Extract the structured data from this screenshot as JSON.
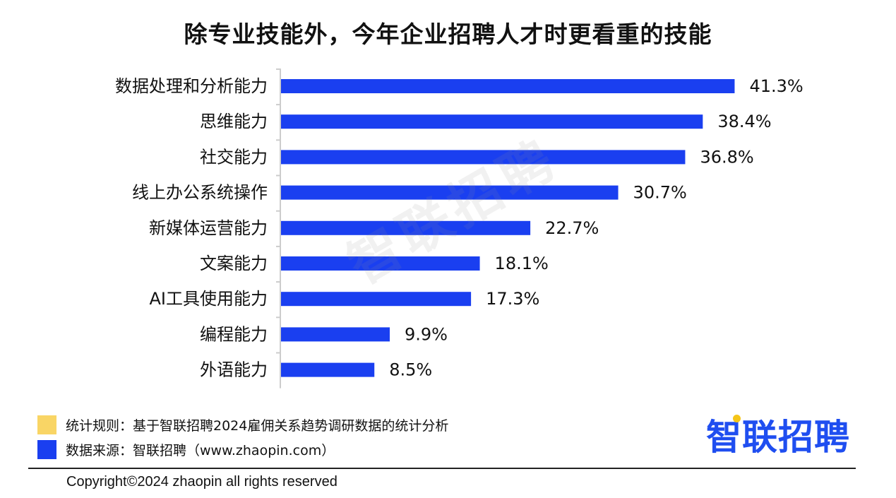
{
  "title": "除专业技能外，今年企业招聘人才时更看重的技能",
  "chart_data": {
    "type": "bar",
    "orientation": "horizontal",
    "categories": [
      "数据处理和分析能力",
      "思维能力",
      "社交能力",
      "线上办公系统操作",
      "新媒体运营能力",
      "文案能力",
      "AI工具使用能力",
      "编程能力",
      "外语能力"
    ],
    "values": [
      41.3,
      38.4,
      36.8,
      30.7,
      22.7,
      18.1,
      17.3,
      9.9,
      8.5
    ],
    "value_labels": [
      "41.3%",
      "38.4%",
      "36.8%",
      "30.7%",
      "22.7%",
      "18.1%",
      "17.3%",
      "9.9%",
      "8.5%"
    ],
    "unit": "%",
    "xlim": [
      0,
      45
    ],
    "bar_color": "#1a3ff0",
    "grid": false
  },
  "watermark": "智联招聘",
  "legend": {
    "rule_label": "统计规则：基于智联招聘2024雇佣关系趋势调研数据的统计分析",
    "rule_color": "#f9d565",
    "source_label": "数据来源：智联招聘（www.zhaopin.com）",
    "source_color": "#1a3ff0"
  },
  "brand": {
    "name": "智联招聘",
    "color": "#1f4ef0",
    "dot_color": "#f5c518"
  },
  "footer": {
    "copyright": "Copyright©2024 zhaopin all rights reserved"
  }
}
